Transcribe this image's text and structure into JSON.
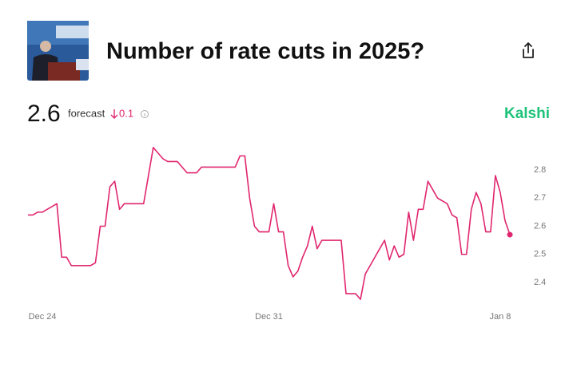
{
  "header": {
    "title": "Number of rate cuts in 2025?"
  },
  "forecast": {
    "value": 2.6,
    "label": "forecast",
    "change": 0.1
  },
  "brand": "Kalshi",
  "chart_data": {
    "type": "line",
    "color": "#e0266e",
    "values": [
      2.64,
      2.64,
      2.65,
      2.65,
      2.66,
      2.67,
      2.68,
      2.49,
      2.49,
      2.46,
      2.46,
      2.46,
      2.46,
      2.46,
      2.47,
      2.6,
      2.6,
      2.74,
      2.76,
      2.66,
      2.68,
      2.68,
      2.68,
      2.68,
      2.68,
      2.78,
      2.88,
      2.86,
      2.84,
      2.83,
      2.83,
      2.83,
      2.81,
      2.79,
      2.79,
      2.79,
      2.81,
      2.81,
      2.81,
      2.81,
      2.81,
      2.81,
      2.81,
      2.81,
      2.85,
      2.85,
      2.7,
      2.6,
      2.58,
      2.58,
      2.58,
      2.68,
      2.58,
      2.58,
      2.46,
      2.42,
      2.44,
      2.49,
      2.53,
      2.6,
      2.52,
      2.55,
      2.55,
      2.55,
      2.55,
      2.55,
      2.36,
      2.36,
      2.36,
      2.34,
      2.43,
      2.46,
      2.49,
      2.52,
      2.55,
      2.48,
      2.53,
      2.49,
      2.5,
      2.65,
      2.55,
      2.66,
      2.66,
      2.76,
      2.73,
      2.7,
      2.69,
      2.68,
      2.64,
      2.63,
      2.5,
      2.5,
      2.66,
      2.72,
      2.68,
      2.58,
      2.58,
      2.78,
      2.72,
      2.62,
      2.57
    ],
    "xlim": [
      0,
      100
    ],
    "xticks": [
      {
        "value": 3,
        "label": "Dec 24"
      },
      {
        "value": 50,
        "label": "Dec 31"
      },
      {
        "value": 98,
        "label": "Jan 8"
      }
    ],
    "ylim": [
      2.3,
      2.9
    ],
    "yticks": [
      2.4,
      2.5,
      2.6,
      2.7,
      2.8
    ]
  }
}
